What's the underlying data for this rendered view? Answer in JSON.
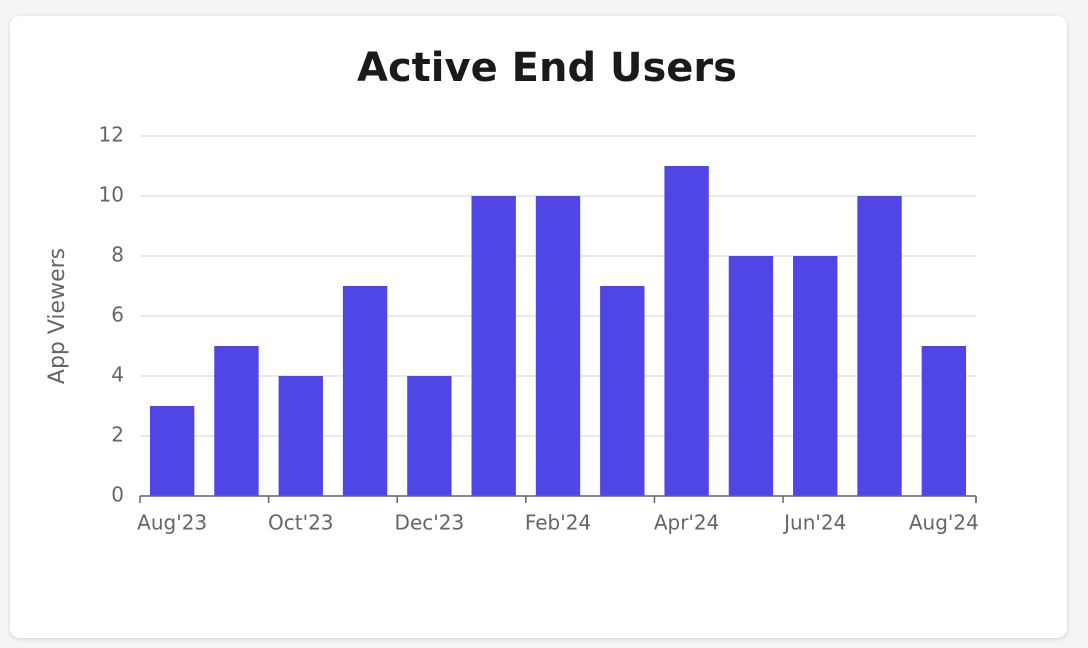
{
  "chart_data": {
    "type": "bar",
    "title": "Active End Users",
    "y_label": "App Viewers",
    "categories": [
      "Aug'23",
      null,
      "Oct'23",
      null,
      "Dec'23",
      null,
      "Feb'24",
      null,
      "Apr'24",
      null,
      "Jun'24",
      null,
      "Aug'24"
    ],
    "values": [
      3,
      5,
      4,
      7,
      4,
      10,
      10,
      7,
      11,
      8,
      8,
      10,
      5
    ],
    "color": "#4f46e5",
    "ylim": [
      0,
      12
    ],
    "yticks": [
      0,
      2,
      4,
      6,
      8,
      10,
      12
    ],
    "grid": true
  }
}
